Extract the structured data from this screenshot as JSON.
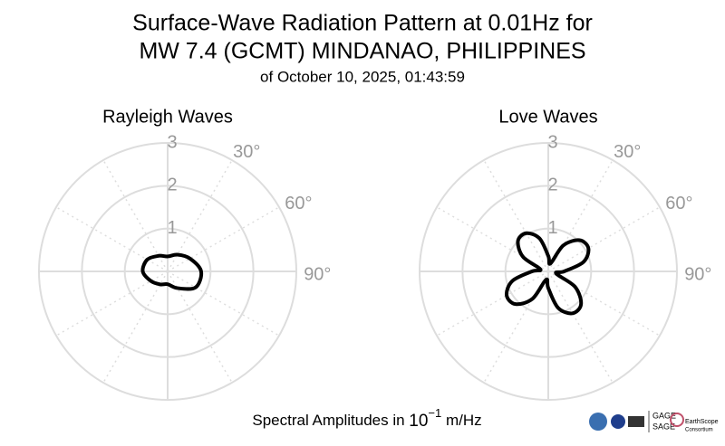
{
  "title": [
    "Surface-Wave Radiation Pattern at 0.01Hz for",
    "MW 7.4 (GCMT) MINDANAO, PHILIPPINES"
  ],
  "subtitle": "of October 10, 2025, 01:43:59",
  "x_label": {
    "text": "Spectral Amplitudes in ",
    "base": "10",
    "exponent": "−1",
    "unit": " m/Hz"
  },
  "logos": [
    "GAGE",
    "SAGE",
    "EarthScope",
    "Consortium"
  ],
  "chart_data": [
    {
      "type": "polar",
      "title": "Rayleigh Waves",
      "theta": [
        0,
        30,
        60,
        90,
        120,
        150,
        180,
        210,
        240,
        270,
        300,
        330
      ],
      "values": [
        0.35,
        0.45,
        0.6,
        0.78,
        0.75,
        0.45,
        0.3,
        0.35,
        0.45,
        0.58,
        0.55,
        0.42
      ],
      "color": "#000000",
      "rlim": [
        0,
        3
      ],
      "rticks": [
        1,
        2,
        3
      ],
      "thetaticks": [
        {
          "value": 30,
          "label": "30°"
        },
        {
          "value": 60,
          "label": "60°"
        },
        {
          "value": 90,
          "label": "90°"
        }
      ],
      "theta_grid": [
        0,
        30,
        60,
        90,
        120,
        150,
        180,
        210,
        240,
        270,
        300,
        330
      ],
      "grid": true
    },
    {
      "type": "polar",
      "title": "Love Waves",
      "theta": [
        0,
        15,
        30,
        45,
        60,
        75,
        90,
        105,
        120,
        135,
        150,
        165,
        180,
        195,
        210,
        225,
        240,
        255,
        270,
        285,
        300,
        315,
        330,
        345
      ],
      "values": [
        0.36,
        0.19,
        0.7,
        1.03,
        1.08,
        0.85,
        0.37,
        0.19,
        0.72,
        1.08,
        1.13,
        0.88,
        0.39,
        0.2,
        0.74,
        1.08,
        1.12,
        0.87,
        0.38,
        0.19,
        0.68,
        1.0,
        1.03,
        0.8
      ],
      "color": "#000000",
      "rlim": [
        0,
        3
      ],
      "rticks": [
        1,
        2,
        3
      ],
      "thetaticks": [
        {
          "value": 30,
          "label": "30°"
        },
        {
          "value": 60,
          "label": "60°"
        },
        {
          "value": 90,
          "label": "90°"
        }
      ],
      "theta_grid": [
        0,
        30,
        60,
        90,
        120,
        150,
        180,
        210,
        240,
        270,
        300,
        330
      ],
      "grid": true
    }
  ]
}
